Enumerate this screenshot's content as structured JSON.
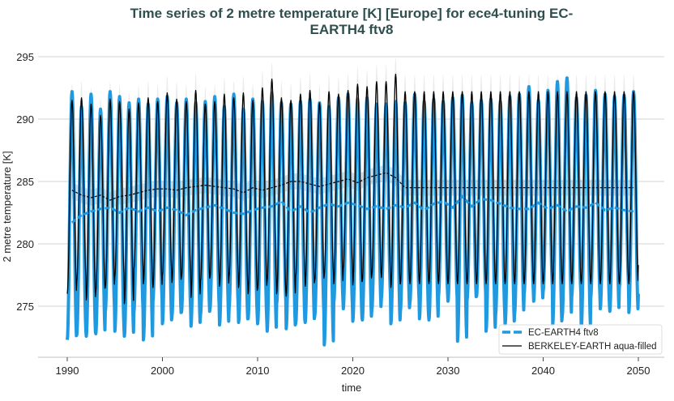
{
  "chart_data": {
    "type": "line",
    "title_line1": "Time series of 2 metre temperature [K] [Europe] for ece4-tuning EC-",
    "title_line2": "EARTH4 ftv8",
    "xlabel": "time",
    "ylabel": "2 metre temperature [K]",
    "xlim": [
      1987,
      2052.7
    ],
    "ylim": [
      271,
      296.5
    ],
    "xticks": [
      "1990",
      "2000",
      "2010",
      "2020",
      "2030",
      "2040",
      "2050"
    ],
    "yticks": [
      "275",
      "280",
      "285",
      "290",
      "295"
    ],
    "grid": "horizontal",
    "legend_position": "bottom-right",
    "colors": {
      "model": "#1f9ae0",
      "obs": "#000000",
      "title": "#2f4f4f"
    },
    "years_start": 1990,
    "series": [
      {
        "name": "EC-EARTH4 ftv8",
        "style": "dashed-thick",
        "annual_max": [
          292.2,
          291.0,
          292.0,
          290.8,
          292.2,
          291.8,
          291.3,
          291.6,
          291.2,
          291.6,
          291.8,
          291.3,
          291.6,
          291.3,
          291.4,
          291.8,
          291.0,
          292.0,
          290.8,
          291.6,
          291.4,
          292.1,
          291.3,
          291.2,
          291.4,
          291.6,
          291.3,
          291.0,
          291.7,
          292.0,
          291.6,
          291.7,
          291.2,
          291.2,
          291.4,
          291.3,
          292.0,
          291.4,
          291.6,
          291.4,
          291.7,
          291.9,
          291.3,
          291.5,
          291.6,
          291.4,
          291.8,
          292.0,
          292.6,
          291.5,
          292.3,
          293.0,
          293.3,
          291.7,
          291.9,
          292.3,
          292.0,
          291.8,
          291.9,
          292.2
        ],
        "annual_min": [
          272.3,
          272.7,
          272.6,
          272.8,
          274.6,
          273.0,
          272.6,
          274.5,
          272.3,
          275.4,
          273.6,
          274.2,
          274.5,
          273.4,
          274.3,
          274.8,
          273.5,
          274.8,
          273.7,
          274.0,
          273.6,
          273.0,
          275.2,
          273.2,
          273.6,
          273.7,
          274.2,
          271.9,
          275.3,
          274.8,
          273.8,
          273.9,
          274.7,
          275.6,
          273.6,
          274.6,
          275.3,
          274.0,
          273.9,
          275.8,
          275.4,
          272.2,
          275.5,
          275.8,
          273.0,
          274.3,
          273.5,
          274.4,
          276.0,
          275.4,
          276.2,
          273.5,
          274.2,
          275.8,
          273.2,
          275.7,
          274.8,
          274.6,
          276.5,
          274.5
        ],
        "running_annual_mean": [
          281.7,
          282.3,
          282.6,
          282.8,
          282.9,
          282.5,
          282.9,
          282.6,
          282.9,
          282.6,
          282.9,
          282.7,
          282.3,
          282.7,
          282.9,
          283.1,
          282.8,
          282.5,
          282.4,
          282.7,
          282.9,
          283.0,
          283.4,
          282.6,
          283.0,
          282.5,
          282.9,
          283.2,
          283.0,
          283.3,
          283.1,
          282.8,
          283.0,
          282.8,
          283.1,
          282.9,
          283.3,
          282.7,
          283.2,
          283.4,
          282.9,
          283.8,
          283.0,
          283.6,
          283.5,
          283.2,
          282.9,
          282.8,
          282.8,
          283.3,
          282.8,
          283.1,
          282.6,
          283.0,
          282.9,
          283.3,
          282.7,
          282.9,
          282.7,
          282.6
        ]
      },
      {
        "name": "BERKELEY-EARTH aqua-filled",
        "style": "solid-thin",
        "annual_max": [
          291.5,
          291.7,
          291.2,
          290.3,
          291.6,
          291.4,
          290.8,
          291.3,
          291.7,
          291.4,
          292.1,
          291.6,
          291.4,
          292.3,
          291.2,
          291.4,
          292.0,
          291.7,
          292.1,
          291.5,
          292.5,
          293.2,
          291.7,
          291.5,
          292.0,
          292.3,
          291.3,
          292.2,
          292.0,
          292.3,
          292.8,
          292.6,
          293.0,
          293.0,
          293.6,
          292.2,
          292.2,
          292.2,
          292.2,
          292.2,
          292.2,
          292.2,
          292.2,
          292.2,
          292.2,
          292.2,
          292.2,
          292.2,
          292.2,
          292.2,
          292.2,
          292.2,
          292.2,
          292.2,
          292.2,
          292.2,
          292.2,
          292.2,
          292.2,
          292.2
        ],
        "annual_min": [
          276.0,
          277.0,
          275.5,
          276.2,
          276.5,
          277.4,
          275.2,
          278.0,
          276.8,
          276.5,
          277.5,
          276.9,
          277.3,
          275.7,
          277.0,
          277.3,
          276.6,
          277.4,
          276.5,
          276.0,
          276.4,
          277.0,
          276.0,
          275.8,
          277.4,
          276.6,
          277.0,
          277.5,
          276.8,
          278.0,
          276.7,
          277.0,
          277.5,
          277.3,
          276.5,
          276.8,
          276.8,
          276.8,
          276.8,
          276.8,
          276.8,
          276.8,
          276.8,
          276.8,
          276.8,
          276.8,
          276.8,
          276.8,
          276.8,
          276.8,
          276.8,
          276.8,
          276.8,
          276.8,
          276.8,
          276.8,
          276.8,
          276.8,
          276.8,
          276.8
        ],
        "running_annual_mean": [
          284.3,
          283.9,
          283.7,
          283.9,
          283.5,
          283.8,
          283.9,
          284.1,
          284.3,
          284.4,
          284.4,
          284.3,
          284.5,
          284.6,
          284.7,
          284.6,
          284.5,
          284.4,
          284.1,
          284.5,
          284.3,
          284.5,
          284.7,
          285.0,
          285.0,
          284.8,
          284.6,
          284.8,
          285.0,
          285.2,
          284.9,
          285.3,
          285.5,
          285.7,
          285.3,
          284.5,
          284.5,
          284.5,
          284.5,
          284.5,
          284.5,
          284.5,
          284.5,
          284.5,
          284.5,
          284.5,
          284.5,
          284.5,
          284.5,
          284.5,
          284.5,
          284.5,
          284.5,
          284.5,
          284.5,
          284.5,
          284.5,
          284.5,
          284.5,
          284.5
        ]
      }
    ]
  }
}
